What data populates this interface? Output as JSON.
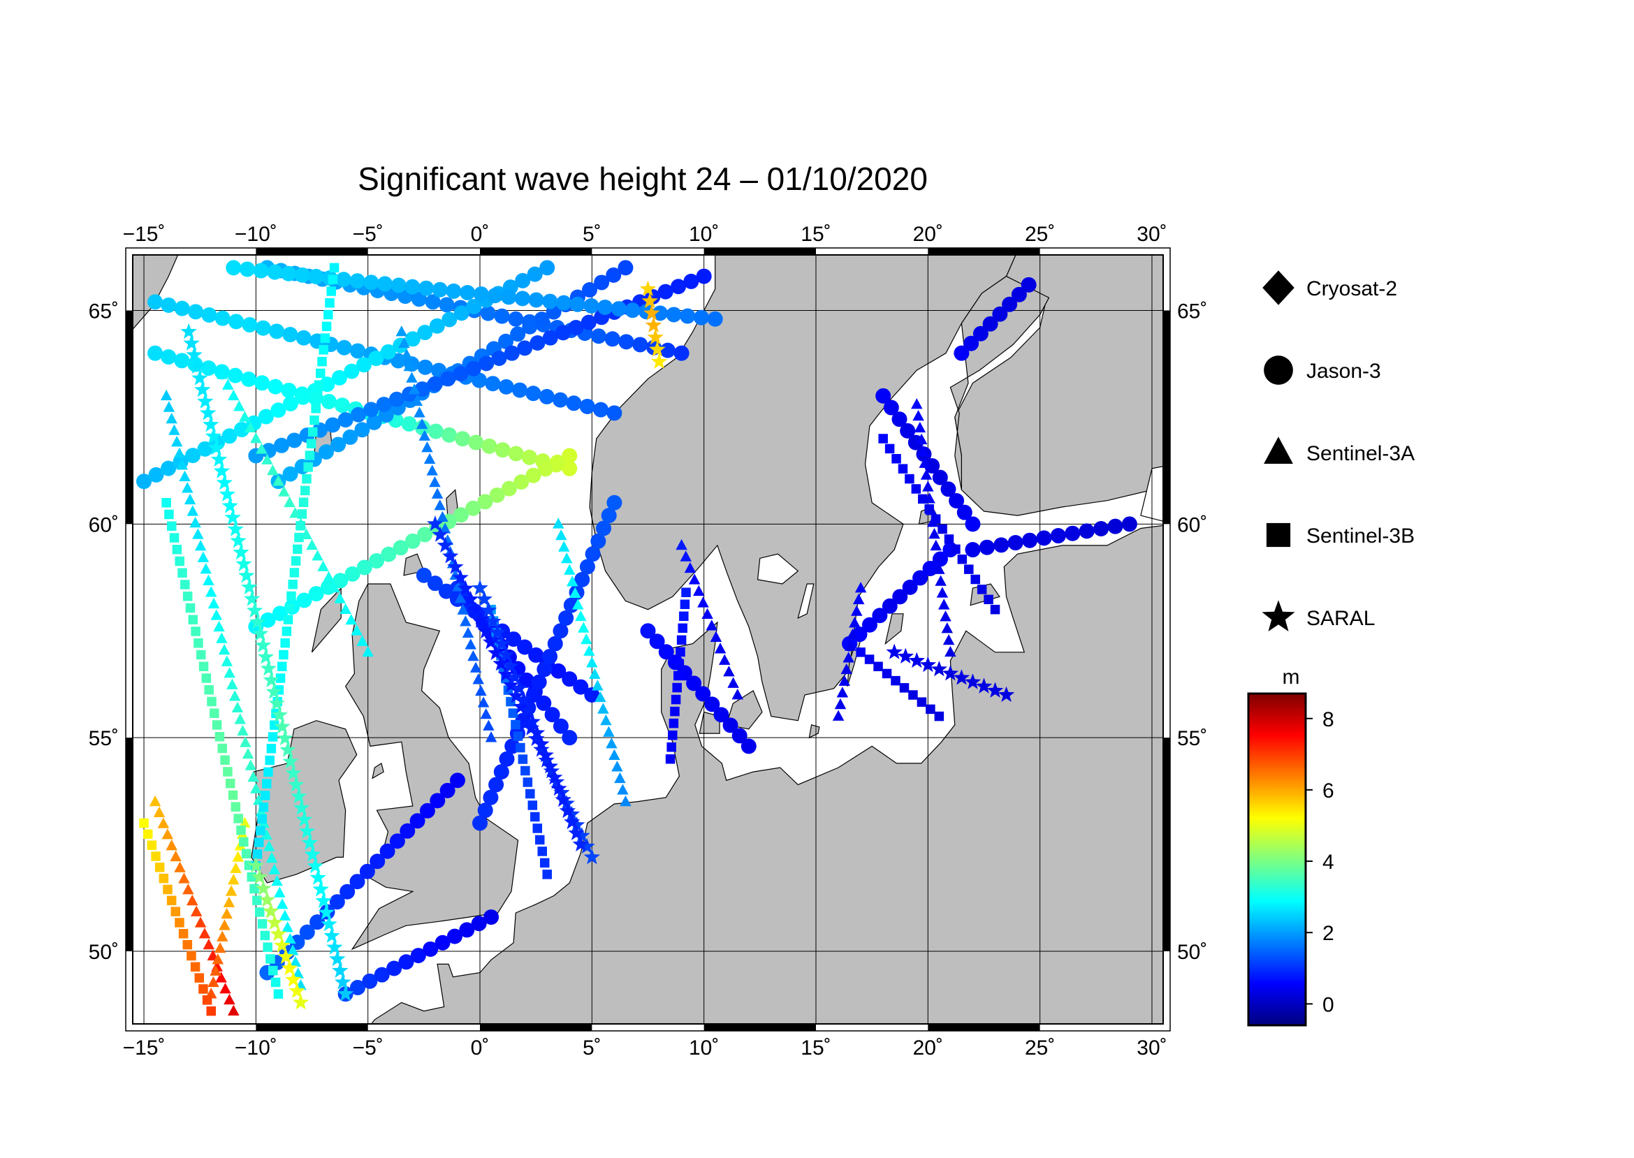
{
  "title": "Significant wave height 24 – 01/10/2020",
  "map": {
    "lon_range": [
      -15.5,
      30.5
    ],
    "lat_range": [
      48.3,
      66.3
    ],
    "lon_ticks": [
      -15,
      -10,
      -5,
      0,
      5,
      10,
      15,
      20,
      25,
      30
    ],
    "lat_ticks": [
      50,
      55,
      60,
      65
    ],
    "lon_tick_labels": [
      "−15˚",
      "−10˚",
      "−5˚",
      "0˚",
      "5˚",
      "10˚",
      "15˚",
      "20˚",
      "25˚",
      "30˚"
    ],
    "lat_tick_labels": [
      "50˚",
      "55˚",
      "60˚",
      "65˚"
    ],
    "land_color": "#bebebe",
    "sea_color": "#ffffff",
    "graticule": true
  },
  "legend": {
    "position": "right",
    "items": [
      {
        "label": "Cryosat-2",
        "marker": "diamond"
      },
      {
        "label": "Jason-3",
        "marker": "circle"
      },
      {
        "label": "Sentinel-3A",
        "marker": "triangle"
      },
      {
        "label": "Sentinel-3B",
        "marker": "square"
      },
      {
        "label": "SARAL",
        "marker": "star"
      }
    ]
  },
  "colorbar": {
    "unit": "m",
    "range": [
      -0.6,
      8.7
    ],
    "ticks": [
      0,
      2,
      4,
      6,
      8
    ],
    "tick_labels": [
      "0",
      "2",
      "4",
      "6",
      "8"
    ],
    "colormap": [
      "#00007f",
      "#0000ff",
      "#007fff",
      "#00ffff",
      "#7fff7f",
      "#ffff00",
      "#ff7f00",
      "#ff0000",
      "#7f0000"
    ]
  },
  "chart_data": {
    "type": "scatter",
    "x_quantity": "longitude",
    "y_quantity": "latitude",
    "value_unit": "m",
    "tracks": [
      {
        "series": "Jason-3",
        "start": [
          -9.5,
          66.0
        ],
        "end": [
          9.0,
          64.0
        ],
        "values": [
          2.2,
          2.0,
          1.8,
          1.5,
          1.4,
          1.0
        ]
      },
      {
        "series": "Jason-3",
        "start": [
          -14.5,
          65.2
        ],
        "end": [
          6.0,
          62.6
        ],
        "values": [
          2.4,
          2.6,
          2.2,
          1.8,
          1.6,
          1.4
        ]
      },
      {
        "series": "Jason-3",
        "start": [
          -15.0,
          61.0
        ],
        "end": [
          3.0,
          66.0
        ],
        "values": [
          2.2,
          2.6,
          3.0,
          2.6,
          2.2,
          2.0
        ]
      },
      {
        "series": "Jason-3",
        "start": [
          -14.5,
          64.0
        ],
        "end": [
          4.0,
          61.3
        ],
        "values": [
          2.6,
          2.8,
          3.0,
          3.2,
          4.2,
          4.8
        ]
      },
      {
        "series": "Jason-3",
        "start": [
          4.0,
          61.6
        ],
        "end": [
          -10.0,
          57.6
        ],
        "values": [
          4.8,
          4.4,
          3.8,
          3.4,
          3.0,
          2.8
        ]
      },
      {
        "series": "Jason-3",
        "start": [
          -9.0,
          61.0
        ],
        "end": [
          6.5,
          66.0
        ],
        "values": [
          2.2,
          2.0,
          1.8,
          1.6,
          1.4,
          1.2
        ]
      },
      {
        "series": "Jason-3",
        "start": [
          -10.0,
          61.6
        ],
        "end": [
          10.0,
          65.8
        ],
        "values": [
          2.0,
          1.8,
          1.4,
          1.2,
          1.0,
          0.8
        ]
      },
      {
        "series": "Jason-3",
        "start": [
          -2.5,
          58.8
        ],
        "end": [
          5.0,
          56.0
        ],
        "values": [
          1.2,
          1.0,
          0.8,
          0.8,
          0.7,
          0.8
        ]
      },
      {
        "series": "Jason-3",
        "start": [
          -1.0,
          58.5
        ],
        "end": [
          4.0,
          55.0
        ],
        "values": [
          1.0,
          0.8,
          0.6,
          0.7,
          0.8,
          0.9
        ]
      },
      {
        "series": "Jason-3",
        "start": [
          0.0,
          53.0
        ],
        "end": [
          6.0,
          60.5
        ],
        "values": [
          1.0,
          0.9,
          0.8,
          1.0,
          1.2,
          1.4
        ]
      },
      {
        "series": "Jason-3",
        "start": [
          -9.5,
          49.5
        ],
        "end": [
          -1.0,
          54.0
        ],
        "values": [
          1.5,
          1.3,
          1.0,
          0.8,
          0.6,
          0.5
        ]
      },
      {
        "series": "Jason-3",
        "start": [
          -6.0,
          49.0
        ],
        "end": [
          0.5,
          50.8
        ],
        "values": [
          1.2,
          1.0,
          0.8,
          0.6,
          0.5,
          0.4
        ]
      },
      {
        "series": "Jason-3",
        "start": [
          7.5,
          57.5
        ],
        "end": [
          12.0,
          54.8
        ],
        "values": [
          0.7,
          0.6,
          0.5,
          0.5,
          0.4,
          0.4
        ]
      },
      {
        "series": "Jason-3",
        "start": [
          16.5,
          57.2
        ],
        "end": [
          21.0,
          59.4
        ],
        "values": [
          0.6,
          0.5,
          0.4,
          0.4,
          0.5,
          0.6
        ]
      },
      {
        "series": "Jason-3",
        "start": [
          18.0,
          63.0
        ],
        "end": [
          22.0,
          60.0
        ],
        "values": [
          0.5,
          0.4,
          0.3,
          0.3,
          0.4,
          0.5
        ]
      },
      {
        "series": "Jason-3",
        "start": [
          21.5,
          64.0
        ],
        "end": [
          24.5,
          65.6
        ],
        "values": [
          0.5,
          0.4,
          0.3,
          0.3,
          0.3,
          0.3
        ]
      },
      {
        "series": "Jason-3",
        "start": [
          22.0,
          59.4
        ],
        "end": [
          29.0,
          60.0
        ],
        "values": [
          0.4,
          0.3,
          0.3,
          0.3,
          0.2,
          0.2
        ]
      },
      {
        "series": "Jason-3",
        "start": [
          -11.0,
          66.0
        ],
        "end": [
          10.5,
          64.8
        ],
        "values": [
          2.6,
          2.4,
          2.2,
          2.0,
          1.8,
          1.6
        ]
      },
      {
        "series": "Sentinel-3A",
        "start": [
          -14.0,
          63.0
        ],
        "end": [
          -8.0,
          49.2
        ],
        "values": [
          2.4,
          2.6,
          3.0,
          3.4,
          3.0,
          2.6
        ]
      },
      {
        "series": "Sentinel-3A",
        "start": [
          -11.5,
          63.5
        ],
        "end": [
          -5.0,
          57.0
        ],
        "values": [
          2.8,
          3.2,
          3.4,
          3.2,
          3.0,
          2.8
        ]
      },
      {
        "series": "Sentinel-3A",
        "start": [
          -3.5,
          64.5
        ],
        "end": [
          0.5,
          55.0
        ],
        "values": [
          2.0,
          1.8,
          1.6,
          1.6,
          1.4,
          1.2
        ]
      },
      {
        "series": "Sentinel-3A",
        "start": [
          3.5,
          60.0
        ],
        "end": [
          6.5,
          53.5
        ],
        "values": [
          2.6,
          2.8,
          3.0,
          2.4,
          2.0,
          1.8
        ]
      },
      {
        "series": "Sentinel-3A",
        "start": [
          9.0,
          59.5
        ],
        "end": [
          11.5,
          56.0
        ],
        "values": [
          0.8,
          0.6,
          0.5,
          0.5,
          0.4,
          0.4
        ]
      },
      {
        "series": "Sentinel-3A",
        "start": [
          17.0,
          58.5
        ],
        "end": [
          16.0,
          55.5
        ],
        "values": [
          0.6,
          0.5,
          0.4,
          0.4,
          0.4,
          0.4
        ]
      },
      {
        "series": "Sentinel-3A",
        "start": [
          19.5,
          62.8
        ],
        "end": [
          21.0,
          57.0
        ],
        "values": [
          0.6,
          0.5,
          0.4,
          0.4,
          0.4,
          0.3
        ]
      },
      {
        "series": "Sentinel-3A",
        "start": [
          -14.5,
          53.5
        ],
        "end": [
          -11.0,
          48.6
        ],
        "values": [
          5.8,
          6.2,
          6.6,
          7.0,
          7.4,
          7.8
        ]
      },
      {
        "series": "Sentinel-3A",
        "start": [
          -10.5,
          53.0
        ],
        "end": [
          -12.0,
          49.0
        ],
        "values": [
          5.0,
          5.4,
          5.8,
          6.2,
          6.6,
          6.8
        ]
      },
      {
        "series": "Sentinel-3B",
        "start": [
          -14.0,
          60.5
        ],
        "end": [
          -9.0,
          49.0
        ],
        "values": [
          3.0,
          3.4,
          3.6,
          3.8,
          3.4,
          3.0
        ]
      },
      {
        "series": "Sentinel-3B",
        "start": [
          -6.5,
          66.0
        ],
        "end": [
          -10.0,
          52.0
        ],
        "values": [
          2.8,
          3.0,
          3.2,
          3.0,
          2.8,
          2.6
        ]
      },
      {
        "series": "Sentinel-3B",
        "start": [
          0.5,
          58.0
        ],
        "end": [
          3.0,
          51.8
        ],
        "values": [
          2.0,
          1.6,
          1.4,
          1.2,
          1.0,
          1.0
        ]
      },
      {
        "series": "Sentinel-3B",
        "start": [
          9.2,
          58.4
        ],
        "end": [
          8.5,
          54.5
        ],
        "values": [
          0.8,
          0.7,
          0.6,
          0.5,
          0.5,
          0.5
        ]
      },
      {
        "series": "Sentinel-3B",
        "start": [
          17.0,
          57.0
        ],
        "end": [
          20.5,
          55.5
        ],
        "values": [
          0.5,
          0.4,
          0.4,
          0.3,
          0.3,
          0.3
        ]
      },
      {
        "series": "Sentinel-3B",
        "start": [
          18.0,
          62.0
        ],
        "end": [
          23.0,
          58.0
        ],
        "values": [
          0.6,
          0.5,
          0.4,
          0.4,
          0.4,
          0.3
        ]
      },
      {
        "series": "Sentinel-3B",
        "start": [
          -15.0,
          53.0
        ],
        "end": [
          -12.0,
          48.6
        ],
        "values": [
          5.2,
          5.6,
          6.0,
          6.4,
          6.6,
          7.0
        ]
      },
      {
        "series": "SARAL",
        "start": [
          -13.0,
          64.5
        ],
        "end": [
          -6.0,
          49.0
        ],
        "values": [
          2.6,
          2.8,
          3.2,
          3.6,
          3.0,
          2.4
        ]
      },
      {
        "series": "SARAL",
        "start": [
          -2.0,
          60.0
        ],
        "end": [
          5.0,
          52.2
        ],
        "values": [
          1.0,
          0.8,
          0.7,
          0.8,
          1.0,
          1.2
        ]
      },
      {
        "series": "SARAL",
        "start": [
          7.5,
          65.5
        ],
        "end": [
          8.0,
          63.8
        ],
        "values": [
          5.6,
          5.8,
          6.0,
          5.8,
          5.6,
          5.4
        ]
      },
      {
        "series": "SARAL",
        "start": [
          -10.0,
          52.0
        ],
        "end": [
          -8.0,
          48.8
        ],
        "values": [
          4.0,
          4.2,
          4.6,
          5.0,
          5.2,
          5.0
        ]
      },
      {
        "series": "SARAL",
        "start": [
          0.0,
          58.5
        ],
        "end": [
          4.5,
          52.5
        ],
        "values": [
          1.2,
          1.0,
          0.9,
          0.8,
          0.8,
          0.9
        ]
      },
      {
        "series": "SARAL",
        "start": [
          18.5,
          57.0
        ],
        "end": [
          23.5,
          56.0
        ],
        "values": [
          0.4,
          0.4,
          0.3,
          0.3,
          0.3,
          0.3
        ]
      }
    ]
  }
}
